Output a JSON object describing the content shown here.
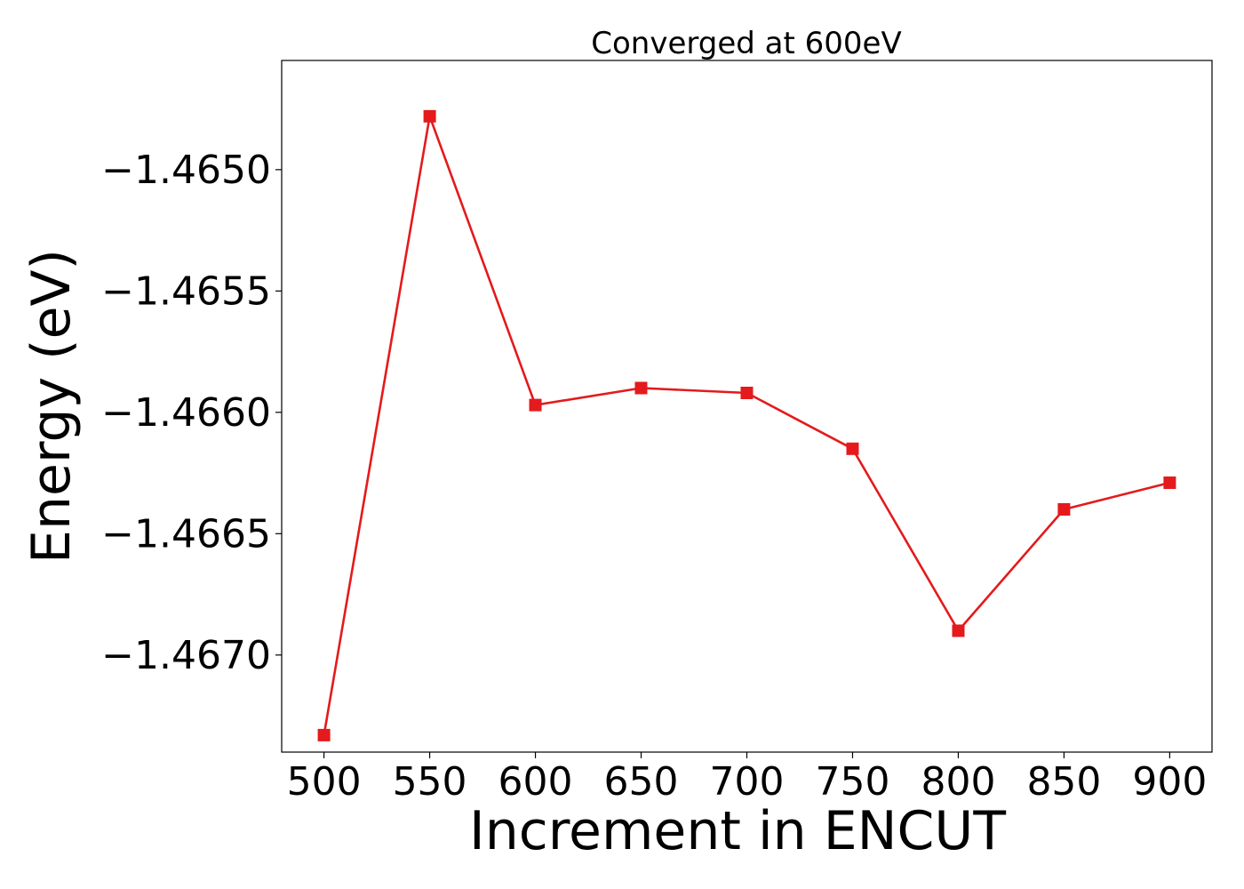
{
  "chart_data": {
    "type": "line",
    "title": "Converged at 600eV",
    "xlabel": "Increment in ENCUT",
    "ylabel": "Energy (eV)",
    "x": [
      500,
      550,
      600,
      650,
      700,
      750,
      800,
      850,
      900
    ],
    "series": [
      {
        "values": [
          -1.46733,
          -1.46478,
          -1.46597,
          -1.4659,
          -1.46592,
          -1.46615,
          -1.4669,
          -1.4664,
          -1.46629
        ],
        "color": "#e41a1c",
        "marker": "square"
      }
    ],
    "xticks": [
      500,
      550,
      600,
      650,
      700,
      750,
      800,
      850,
      900
    ],
    "yticks": [
      -1.465,
      -1.4655,
      -1.466,
      -1.4665,
      -1.467
    ],
    "ytick_labels": [
      "−1.4650",
      "−1.4655",
      "−1.4660",
      "−1.4665",
      "−1.4670"
    ],
    "xlim": [
      480,
      920
    ],
    "ylim": [
      -1.4674,
      -1.46455
    ],
    "grid": false
  }
}
